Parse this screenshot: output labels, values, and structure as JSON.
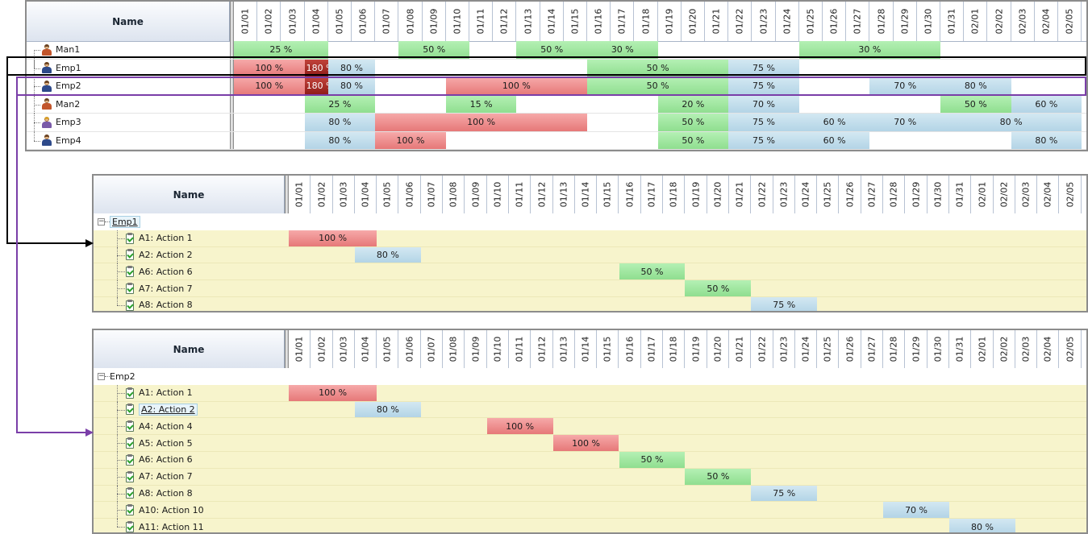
{
  "colors": {
    "green": "#9fe49f",
    "red": "#ee8f8f",
    "blue": "#c4dfec",
    "dark_red": "#a3281f",
    "yellow_row": "#f7f4cc",
    "highlight_black": "#000000",
    "highlight_purple": "#7a3ea8"
  },
  "days": [
    "01/01",
    "01/02",
    "01/03",
    "01/04",
    "01/05",
    "01/06",
    "01/07",
    "01/08",
    "01/09",
    "01/10",
    "01/11",
    "01/12",
    "01/13",
    "01/14",
    "01/15",
    "01/16",
    "01/17",
    "01/18",
    "01/19",
    "01/20",
    "01/21",
    "01/22",
    "01/23",
    "01/24",
    "01/25",
    "01/26",
    "01/27",
    "01/28",
    "01/29",
    "01/30",
    "01/31",
    "02/01",
    "02/02",
    "02/03",
    "02/04",
    "02/05"
  ],
  "overview": {
    "name_header": "Name",
    "rows": [
      {
        "label": "Man1",
        "icon": "manager-icon",
        "bars": [
          {
            "start": 0,
            "span": 4,
            "color": "green",
            "text": "25 %"
          },
          {
            "start": 7,
            "span": 3,
            "color": "green",
            "text": "50 %"
          },
          {
            "start": 12,
            "span": 3,
            "color": "green",
            "text": "50 %"
          },
          {
            "start": 15,
            "span": 3,
            "color": "green",
            "text": "30 %"
          },
          {
            "start": 24,
            "span": 6,
            "color": "green",
            "text": "30 %"
          }
        ]
      },
      {
        "label": "Emp1",
        "icon": "employee-icon",
        "bars": [
          {
            "start": 0,
            "span": 3,
            "color": "red",
            "text": "100 %"
          },
          {
            "start": 3,
            "span": 1,
            "color": "dark",
            "text": "180 %"
          },
          {
            "start": 4,
            "span": 2,
            "color": "blue",
            "text": "80 %"
          },
          {
            "start": 15,
            "span": 6,
            "color": "green",
            "text": "50 %"
          },
          {
            "start": 21,
            "span": 3,
            "color": "blue",
            "text": "75 %"
          }
        ]
      },
      {
        "label": "Emp2",
        "icon": "employee-icon",
        "bars": [
          {
            "start": 0,
            "span": 3,
            "color": "red",
            "text": "100 %"
          },
          {
            "start": 3,
            "span": 1,
            "color": "dark",
            "text": "180 %"
          },
          {
            "start": 4,
            "span": 2,
            "color": "blue",
            "text": "80 %"
          },
          {
            "start": 9,
            "span": 6,
            "color": "red",
            "text": "100 %"
          },
          {
            "start": 15,
            "span": 6,
            "color": "green",
            "text": "50 %"
          },
          {
            "start": 21,
            "span": 3,
            "color": "blue",
            "text": "75 %"
          },
          {
            "start": 27,
            "span": 3,
            "color": "blue",
            "text": "70 %"
          },
          {
            "start": 30,
            "span": 3,
            "color": "blue",
            "text": "80 %"
          }
        ]
      },
      {
        "label": "Man2",
        "icon": "manager-icon",
        "bars": [
          {
            "start": 3,
            "span": 3,
            "color": "green",
            "text": "25 %"
          },
          {
            "start": 9,
            "span": 3,
            "color": "green",
            "text": "15 %"
          },
          {
            "start": 18,
            "span": 3,
            "color": "green",
            "text": "20 %"
          },
          {
            "start": 21,
            "span": 3,
            "color": "blue",
            "text": "70 %"
          },
          {
            "start": 30,
            "span": 3,
            "color": "green",
            "text": "50 %"
          },
          {
            "start": 33,
            "span": 3,
            "color": "blue",
            "text": "60 %"
          }
        ]
      },
      {
        "label": "Emp3",
        "icon": "employee-female-icon",
        "bars": [
          {
            "start": 3,
            "span": 3,
            "color": "blue",
            "text": "80 %"
          },
          {
            "start": 6,
            "span": 9,
            "color": "red",
            "text": "100 %"
          },
          {
            "start": 18,
            "span": 3,
            "color": "green",
            "text": "50 %"
          },
          {
            "start": 21,
            "span": 3,
            "color": "blue",
            "text": "75 %"
          },
          {
            "start": 24,
            "span": 3,
            "color": "blue",
            "text": "60 %"
          },
          {
            "start": 27,
            "span": 3,
            "color": "blue",
            "text": "70 %"
          },
          {
            "start": 30,
            "span": 6,
            "color": "blue",
            "text": "80 %"
          }
        ]
      },
      {
        "label": "Emp4",
        "icon": "employee-icon",
        "bars": [
          {
            "start": 3,
            "span": 3,
            "color": "blue",
            "text": "80 %"
          },
          {
            "start": 6,
            "span": 3,
            "color": "red",
            "text": "100 %"
          },
          {
            "start": 18,
            "span": 3,
            "color": "green",
            "text": "50 %"
          },
          {
            "start": 21,
            "span": 3,
            "color": "blue",
            "text": "75 %"
          },
          {
            "start": 24,
            "span": 3,
            "color": "blue",
            "text": "60 %"
          },
          {
            "start": 33,
            "span": 3,
            "color": "blue",
            "text": "80 %"
          }
        ]
      }
    ]
  },
  "detail_emp1": {
    "name_header": "Name",
    "group": "Emp1",
    "tasks": [
      {
        "label": "A1: Action 1",
        "bar": {
          "start": 0,
          "span": 4,
          "color": "red",
          "text": "100 %"
        }
      },
      {
        "label": "A2: Action 2",
        "bar": {
          "start": 3,
          "span": 3,
          "color": "blue",
          "text": "80 %"
        }
      },
      {
        "label": "A6: Action 6",
        "bar": {
          "start": 15,
          "span": 3,
          "color": "green",
          "text": "50 %"
        }
      },
      {
        "label": "A7: Action 7",
        "bar": {
          "start": 18,
          "span": 3,
          "color": "green",
          "text": "50 %"
        }
      },
      {
        "label": "A8: Action 8",
        "bar": {
          "start": 21,
          "span": 3,
          "color": "blue",
          "text": "75 %"
        }
      }
    ]
  },
  "detail_emp2": {
    "name_header": "Name",
    "group": "Emp2",
    "tasks": [
      {
        "label": "A1: Action 1",
        "bar": {
          "start": 0,
          "span": 4,
          "color": "red",
          "text": "100 %"
        }
      },
      {
        "label": "A2: Action 2",
        "bar": {
          "start": 3,
          "span": 3,
          "color": "blue",
          "text": "80 %"
        },
        "selected": true
      },
      {
        "label": "A4: Action 4",
        "bar": {
          "start": 9,
          "span": 3,
          "color": "red",
          "text": "100 %"
        }
      },
      {
        "label": "A5: Action 5",
        "bar": {
          "start": 12,
          "span": 3,
          "color": "red",
          "text": "100 %"
        }
      },
      {
        "label": "A6: Action 6",
        "bar": {
          "start": 15,
          "span": 3,
          "color": "green",
          "text": "50 %"
        }
      },
      {
        "label": "A7: Action 7",
        "bar": {
          "start": 18,
          "span": 3,
          "color": "green",
          "text": "50 %"
        }
      },
      {
        "label": "A8: Action 8",
        "bar": {
          "start": 21,
          "span": 3,
          "color": "blue",
          "text": "75 %"
        }
      },
      {
        "label": "A10: Action 10",
        "bar": {
          "start": 27,
          "span": 3,
          "color": "blue",
          "text": "70 %"
        }
      },
      {
        "label": "A11: Action 11",
        "bar": {
          "start": 30,
          "span": 3,
          "color": "blue",
          "text": "80 %"
        }
      }
    ]
  }
}
